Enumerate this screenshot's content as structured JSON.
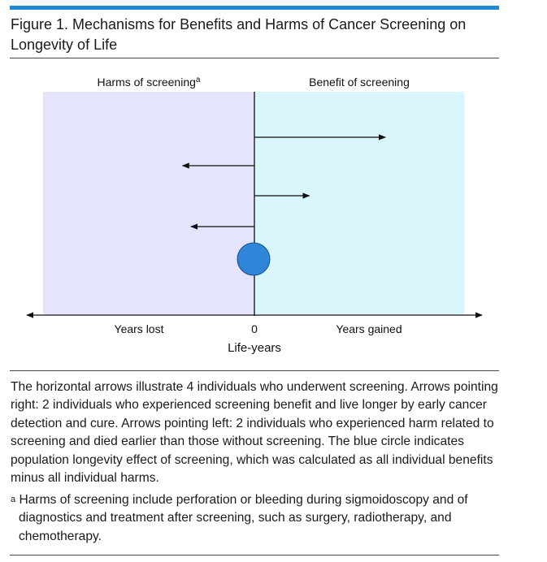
{
  "figure": {
    "title": "Figure 1. Mechanisms for Benefits and Harms of Cancer Screening on Longevity of Life",
    "colors": {
      "accent_bar": "#1e88d4",
      "harms_region": "#e4e4fc",
      "benefit_region": "#d8f6fc",
      "population_circle": "#2f86d8"
    }
  },
  "diagram": {
    "harms_header": "Harms of screening",
    "harms_header_mark": "a",
    "benefit_header": "Benefit of screening",
    "axis_left_label": "Years lost",
    "axis_zero_label": "0",
    "axis_right_label": "Years gained",
    "axis_title": "Life-years",
    "individual_arrows": [
      {
        "direction": "right",
        "magnitude": 3.1
      },
      {
        "direction": "left",
        "magnitude": 1.7
      },
      {
        "direction": "right",
        "magnitude": 1.3
      },
      {
        "direction": "left",
        "magnitude": 1.5
      }
    ]
  },
  "caption": {
    "text": "The horizontal arrows illustrate 4 individuals who underwent screening. Arrows pointing right: 2 individuals who experienced screening benefit and live longer by early cancer detection and cure. Arrows pointing left: 2 individuals who experienced harm related to screening and died earlier than those without screening. The blue circle indicates population longevity effect of screening, which was calculated as all individual benefits minus all individual harms."
  },
  "footnote": {
    "mark": "a",
    "text": " Harms of screening include perforation or bleeding during sigmoidoscopy and of diagnostics and treatment after screening, such as surgery, radiotherapy, and chemotherapy."
  }
}
